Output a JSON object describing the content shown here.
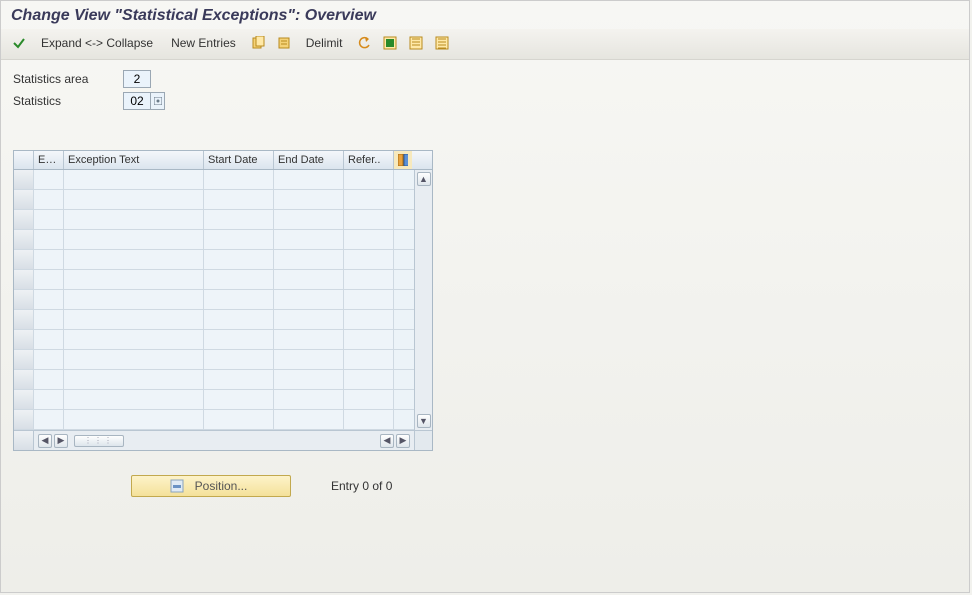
{
  "title": "Change View \"Statistical Exceptions\": Overview",
  "toolbar": {
    "expand_collapse": "Expand <-> Collapse",
    "new_entries": "New Entries",
    "delimit": "Delimit",
    "icons": {
      "check": "check-icon",
      "copy": "copy-icon",
      "delete": "delete-icon",
      "undo": "undo-icon",
      "select_all": "select-all-icon",
      "deselect_all": "deselect-all-icon",
      "print": "print-icon"
    }
  },
  "form": {
    "stat_area_label": "Statistics area",
    "stat_area_value": "2",
    "statistics_label": "Statistics",
    "statistics_value": "02"
  },
  "table": {
    "columns": {
      "c1": "Ex...",
      "c2": "Exception Text",
      "c3": "Start Date",
      "c4": "End Date",
      "c5": "Refer.."
    },
    "row_count": 13
  },
  "footer": {
    "position_label": "Position...",
    "entry_text": "Entry 0 of 0"
  },
  "colors": {
    "bg": "#f2f2ee",
    "header_text": "#3a3a5a",
    "toolbar_bg_top": "#f4f3ef",
    "toolbar_bg_bottom": "#e6e5df",
    "field_bg": "#eaf3fb",
    "field_border": "#9aa7b3",
    "table_border": "#a9b8c5",
    "table_header_top": "#f4f7fa",
    "table_header_bottom": "#dbe5ee",
    "cell_bg": "#eef4f9",
    "grid": "#cfd9e2",
    "posbtn_top": "#fdf3c9",
    "posbtn_bottom": "#f4e19a",
    "posbtn_border": "#c2a94e"
  }
}
